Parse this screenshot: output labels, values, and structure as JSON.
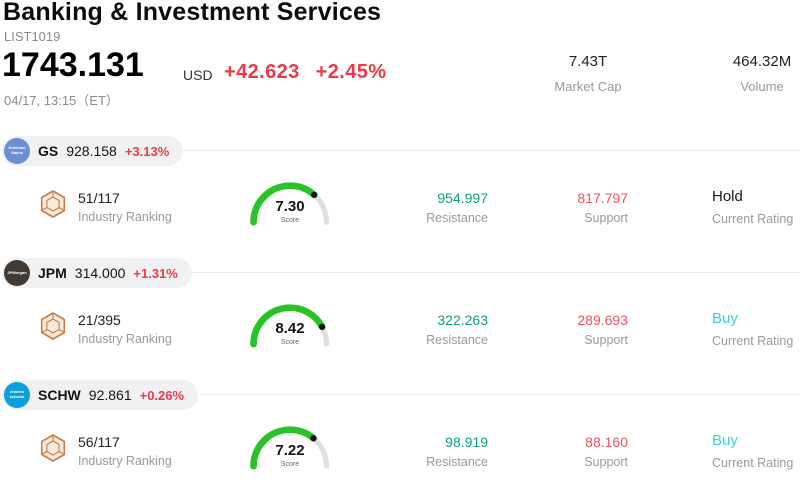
{
  "header": {
    "title": "Banking & Investment Services",
    "list_id": "LIST1019",
    "price": "1743.131",
    "currency": "USD",
    "change": "+42.623",
    "change_pct": "+2.45%",
    "datetime": "04/17, 13:15（ET）",
    "market_cap_value": "7.43T",
    "market_cap_label": "Market Cap",
    "volume_value": "464.32M",
    "volume_label": "Volume"
  },
  "colors": {
    "up_red": "#ee3a46",
    "resistance_teal": "#0f9e82",
    "support_red": "#ef5360",
    "buy_cyan": "#3ecfdb",
    "hold_dark": "#141414",
    "gauge_green": "#27c327"
  },
  "stocks": [
    {
      "ticker": "GS",
      "logo_text": "Goldman Sachs",
      "logo_color": "#6b8fd4",
      "price": "928.158",
      "change_pct": "+3.13%",
      "ranking": "51/117",
      "ranking_label": "Industry Ranking",
      "score": "7.30",
      "score_value": 7.3,
      "score_label": "Score",
      "resistance_value": "954.997",
      "resistance_label": "Resistance",
      "support_value": "817.797",
      "support_label": "Support",
      "rating": "Hold",
      "rating_label": "Current Rating",
      "rating_type": "hold"
    },
    {
      "ticker": "JPM",
      "logo_text": "JPMorgan",
      "logo_color": "#423b35",
      "price": "314.000",
      "change_pct": "+1.31%",
      "ranking": "21/395",
      "ranking_label": "Industry Ranking",
      "score": "8.42",
      "score_value": 8.42,
      "score_label": "Score",
      "resistance_value": "322.263",
      "resistance_label": "Resistance",
      "support_value": "289.693",
      "support_label": "Support",
      "rating": "Buy",
      "rating_label": "Current Rating",
      "rating_type": "buy"
    },
    {
      "ticker": "SCHW",
      "logo_text": "charles schwab",
      "logo_color": "#0b9fdd",
      "price": "92.861",
      "change_pct": "+0.26%",
      "ranking": "56/117",
      "ranking_label": "Industry Ranking",
      "score": "7.22",
      "score_value": 7.22,
      "score_label": "Score",
      "resistance_value": "98.919",
      "resistance_label": "Resistance",
      "support_value": "88.160",
      "support_label": "Support",
      "rating": "Buy",
      "rating_label": "Current Rating",
      "rating_type": "buy"
    }
  ]
}
